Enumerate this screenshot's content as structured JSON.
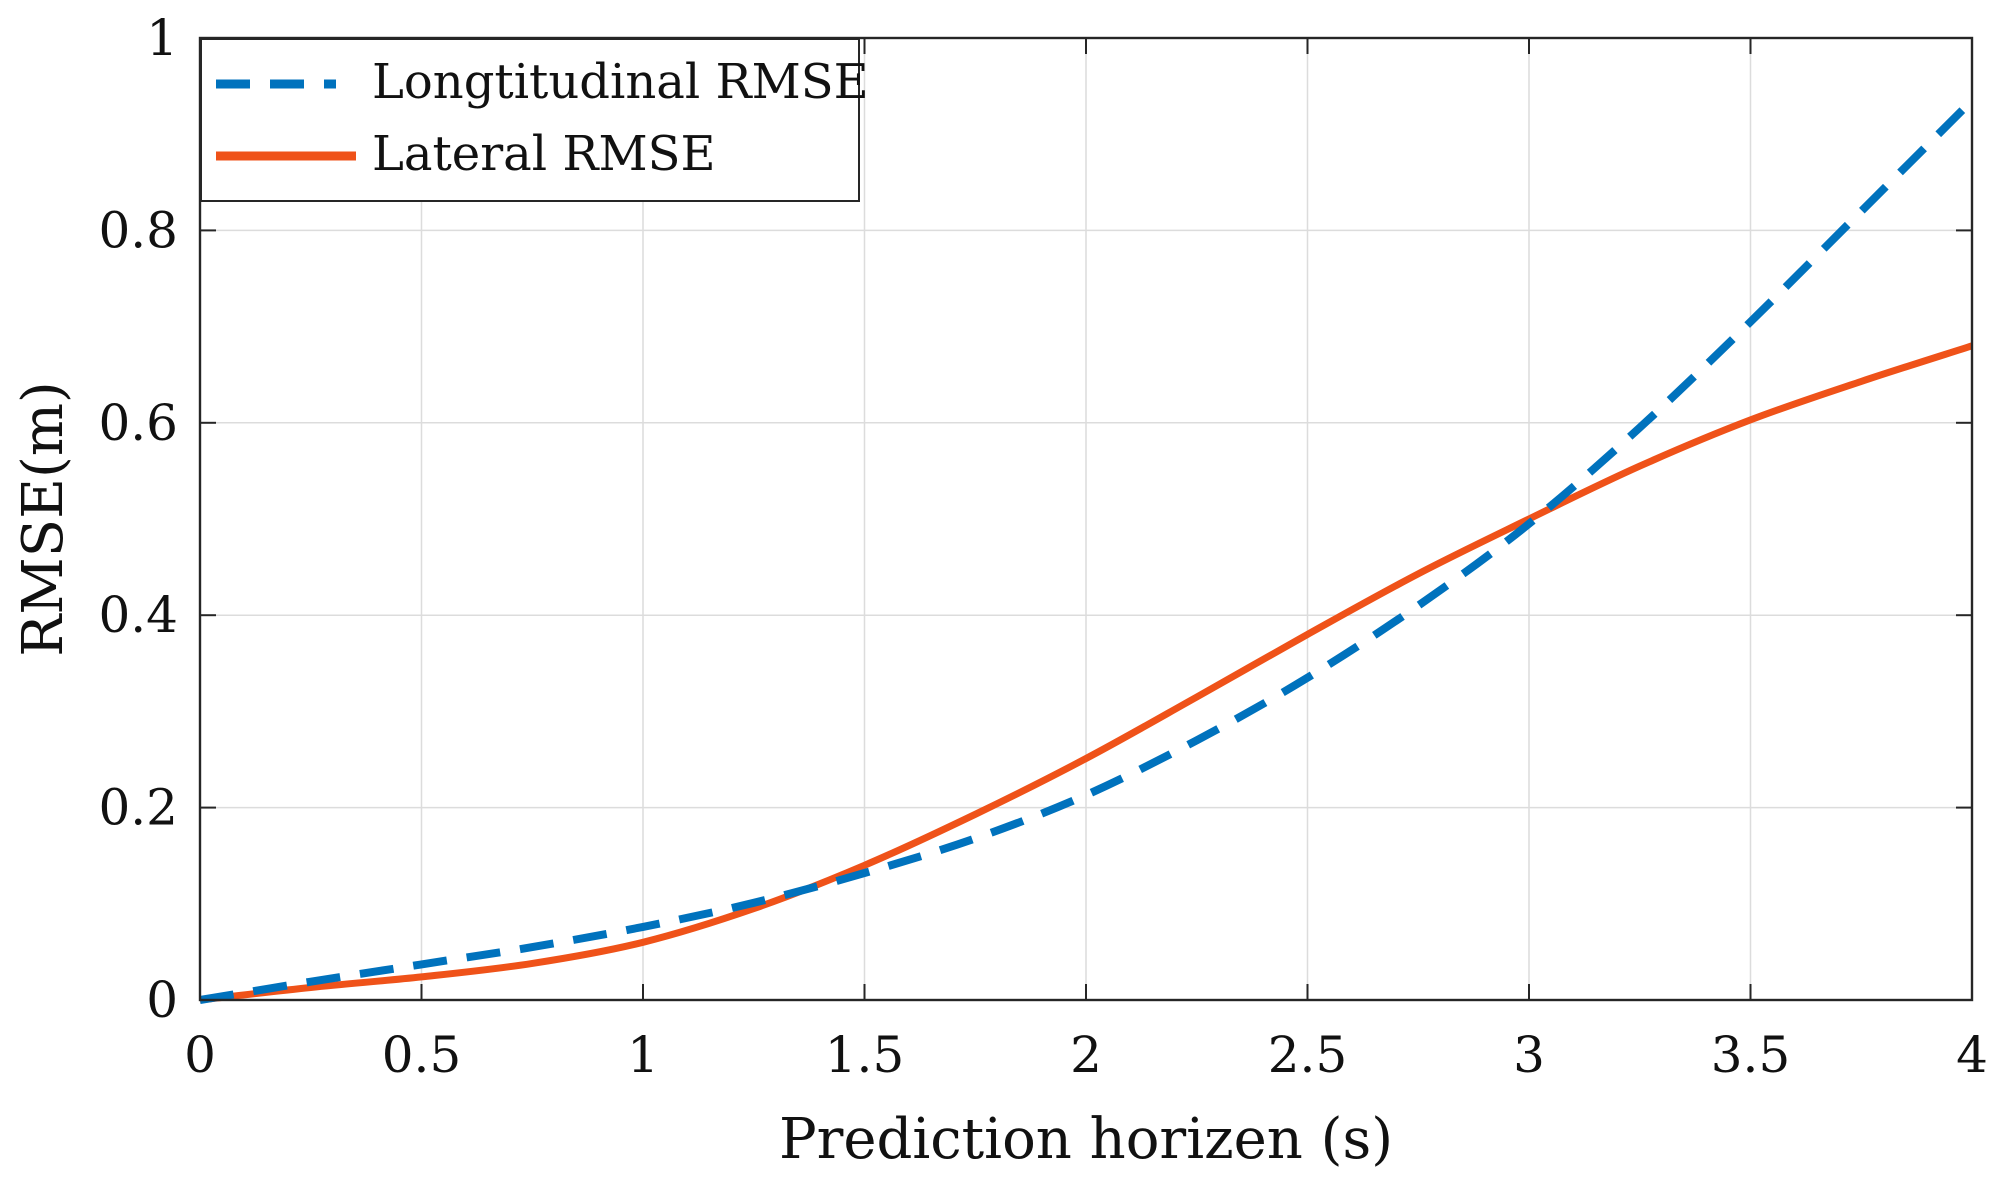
{
  "chart_data": {
    "type": "line",
    "title": "",
    "xlabel": "Prediction horizen (s)",
    "ylabel": "RMSE(m)",
    "xlim": [
      0,
      4
    ],
    "ylim": [
      0,
      1
    ],
    "grid": true,
    "legend_position": "top-left",
    "x_ticks": [
      {
        "value": 0,
        "label": "0"
      },
      {
        "value": 0.5,
        "label": "0.5"
      },
      {
        "value": 1,
        "label": "1"
      },
      {
        "value": 1.5,
        "label": "1.5"
      },
      {
        "value": 2,
        "label": "2"
      },
      {
        "value": 2.5,
        "label": "2.5"
      },
      {
        "value": 3,
        "label": "3"
      },
      {
        "value": 3.5,
        "label": "3.5"
      },
      {
        "value": 4,
        "label": "4"
      }
    ],
    "y_ticks": [
      {
        "value": 0,
        "label": "0"
      },
      {
        "value": 0.2,
        "label": "0.2"
      },
      {
        "value": 0.4,
        "label": "0.4"
      },
      {
        "value": 0.6,
        "label": "0.6"
      },
      {
        "value": 0.8,
        "label": "0.8"
      },
      {
        "value": 1,
        "label": "1"
      }
    ],
    "series": [
      {
        "name": "Longtitudinal RMSE",
        "color": "#0072BD",
        "style": "dashed",
        "x": [
          0,
          0.25,
          0.5,
          0.75,
          1.0,
          1.25,
          1.5,
          1.75,
          2.0,
          2.25,
          2.5,
          2.75,
          3.0,
          3.25,
          3.5,
          3.75,
          4.0
        ],
        "y": [
          0,
          0.019,
          0.037,
          0.055,
          0.076,
          0.101,
          0.132,
          0.168,
          0.213,
          0.27,
          0.335,
          0.41,
          0.495,
          0.595,
          0.705,
          0.82,
          0.935
        ]
      },
      {
        "name": "Lateral RMSE",
        "color": "#EF5219",
        "style": "solid",
        "x": [
          0,
          0.25,
          0.5,
          0.75,
          1.0,
          1.25,
          1.5,
          1.75,
          2.0,
          2.25,
          2.5,
          2.75,
          3.0,
          3.25,
          3.5,
          3.75,
          4.0
        ],
        "y": [
          0,
          0.013,
          0.024,
          0.038,
          0.06,
          0.095,
          0.14,
          0.193,
          0.251,
          0.315,
          0.38,
          0.443,
          0.5,
          0.555,
          0.603,
          0.643,
          0.68
        ]
      }
    ]
  }
}
